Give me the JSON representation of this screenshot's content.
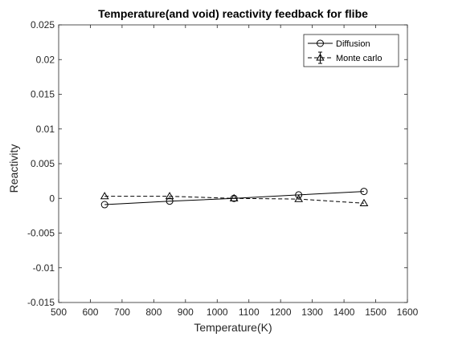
{
  "chart_data": {
    "type": "line",
    "title": "Temperature(and void) reactivity feedback for flibe",
    "xlabel": "Temperature(K)",
    "ylabel": "Reactivity",
    "xlim": [
      500,
      1600
    ],
    "ylim": [
      -0.015,
      0.025
    ],
    "xticks": [
      500,
      600,
      700,
      800,
      900,
      1000,
      1100,
      1200,
      1300,
      1400,
      1500,
      1600
    ],
    "yticks": [
      -0.015,
      -0.01,
      -0.005,
      0,
      0.005,
      0.01,
      0.015,
      0.02,
      0.025
    ],
    "xtick_labels": [
      "500",
      "600",
      "700",
      "800",
      "900",
      "1000",
      "1100",
      "1200",
      "1300",
      "1400",
      "1500",
      "1600"
    ],
    "ytick_labels": [
      "-0.015",
      "-0.01",
      "-0.005",
      "0",
      "0.005",
      "0.01",
      "0.015",
      "0.02",
      "0.025"
    ],
    "grid": false,
    "legend_position": "top-right",
    "series": [
      {
        "name": "Diffusion",
        "marker": "circle",
        "line_style": "solid",
        "color": "#000000",
        "x": [
          645,
          850,
          1053,
          1257,
          1463
        ],
        "y": [
          -0.0009,
          -0.0004,
          0.0,
          0.0005,
          0.001
        ]
      },
      {
        "name": "Monte carlo",
        "marker": "triangle",
        "line_style": "dashed",
        "color": "#000000",
        "error_bars": true,
        "x": [
          645,
          850,
          1053,
          1257,
          1463
        ],
        "y": [
          0.0003,
          0.0003,
          0.0,
          -0.0001,
          -0.0007
        ]
      }
    ]
  }
}
